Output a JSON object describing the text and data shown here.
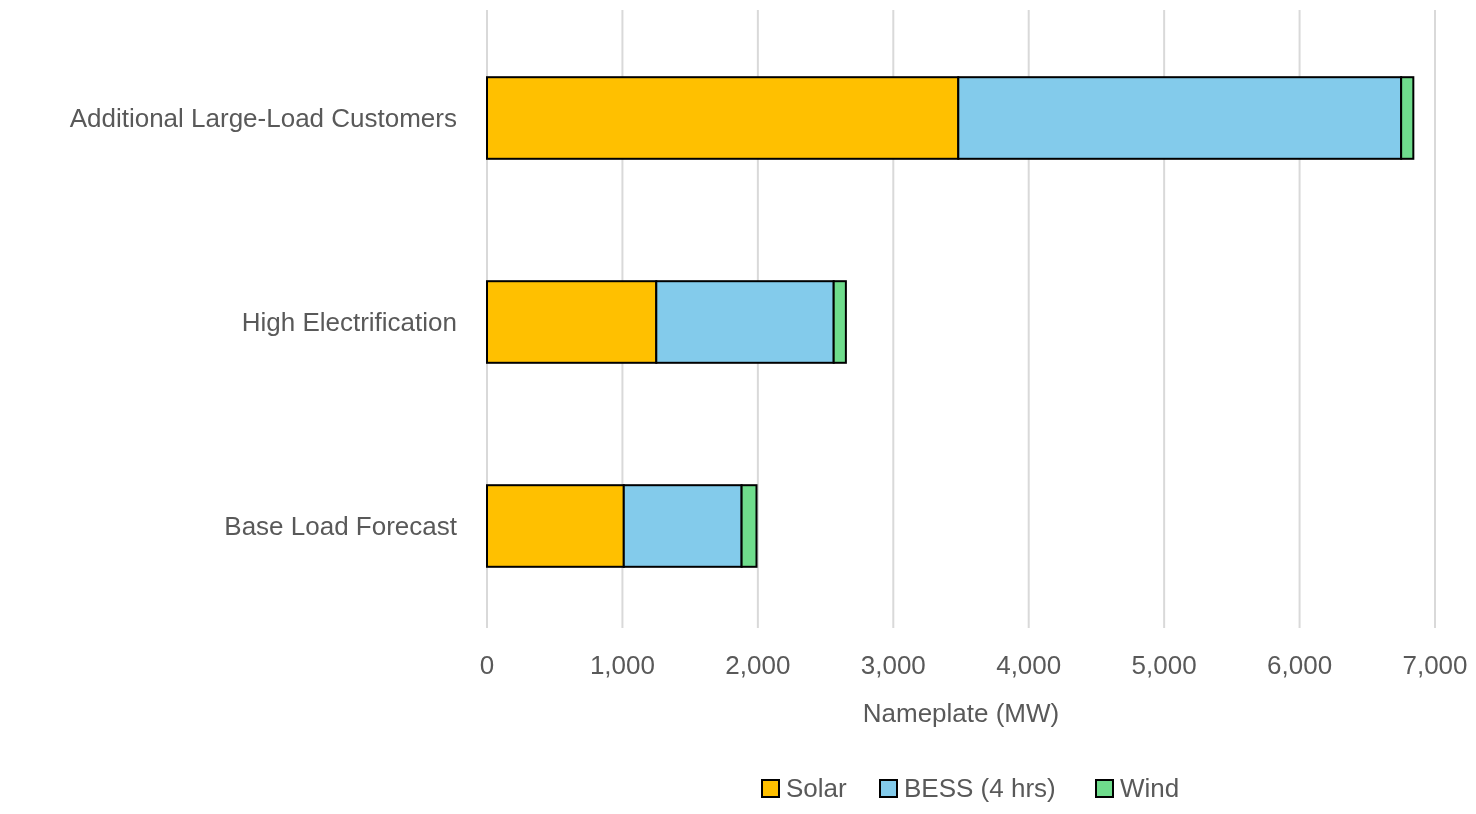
{
  "chart_data": {
    "type": "bar",
    "orientation": "horizontal",
    "stacked": true,
    "xlabel": "Nameplate (MW)",
    "categories": [
      "Additional Large-Load Customers",
      "High Electrification",
      "Base Load Forecast"
    ],
    "series": [
      {
        "name": "Solar",
        "color": "#ffc000",
        "values": [
          3480,
          1250,
          1010
        ]
      },
      {
        "name": "BESS (4 hrs)",
        "color": "#83cbeb",
        "values": [
          3270,
          1310,
          870
        ]
      },
      {
        "name": "Wind",
        "color": "#6fdc8c",
        "values": [
          90,
          90,
          110
        ]
      }
    ],
    "xlim": [
      0,
      7000
    ],
    "xticks": [
      {
        "value": 0,
        "label": "0"
      },
      {
        "value": 1000,
        "label": "1,000"
      },
      {
        "value": 2000,
        "label": "2,000"
      },
      {
        "value": 3000,
        "label": "3,000"
      },
      {
        "value": 4000,
        "label": "4,000"
      },
      {
        "value": 5000,
        "label": "5,000"
      },
      {
        "value": 6000,
        "label": "6,000"
      },
      {
        "value": 7000,
        "label": "7,000"
      }
    ],
    "grid": "x",
    "legend": "bottom"
  }
}
